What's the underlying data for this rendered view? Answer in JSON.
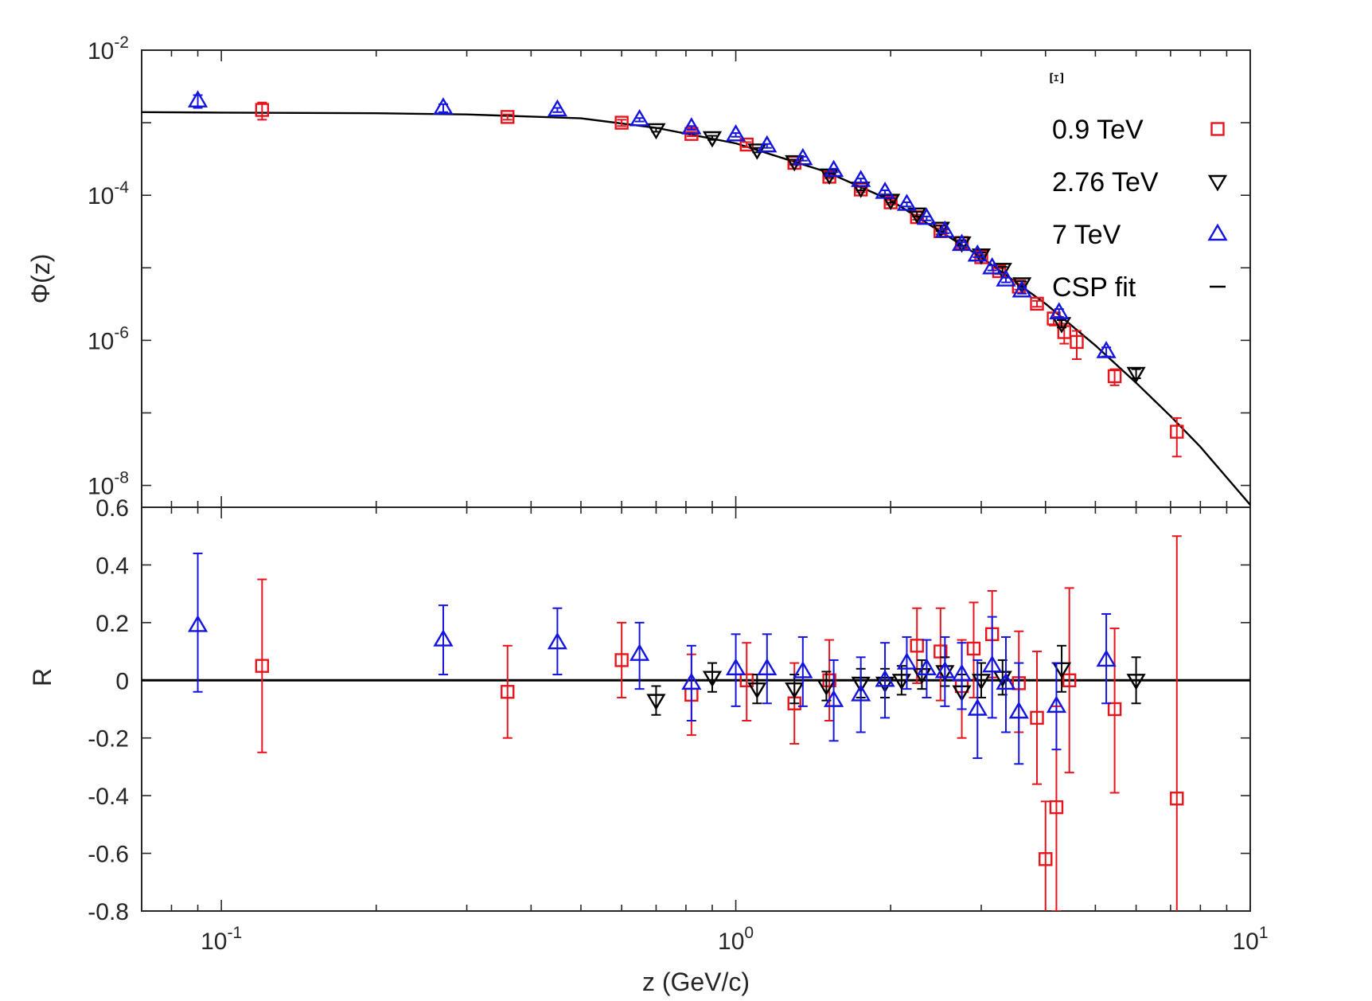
{
  "chart_data": [
    {
      "panel": "top",
      "type": "scatter",
      "scale": "log-log",
      "ylabel": "Φ(z)",
      "xlim": [
        0.07,
        10
      ],
      "ylim": [
        5e-09,
        0.01
      ],
      "species_label": "Ξ",
      "y_ticks": [
        {
          "value": 0.01,
          "base": "10",
          "exp": "-2"
        },
        {
          "value": 0.0001,
          "base": "10",
          "exp": "-4"
        },
        {
          "value": 1e-06,
          "base": "10",
          "exp": "-6"
        },
        {
          "value": 1e-08,
          "base": "10",
          "exp": "-8"
        }
      ],
      "legend": [
        {
          "name": "0.9 TeV",
          "marker": "square",
          "color": "#e8141c"
        },
        {
          "name": "2.76 TeV",
          "marker": "triangle-down",
          "color": "#000000"
        },
        {
          "name": "7 TeV",
          "marker": "triangle-up",
          "color": "#1414e0"
        },
        {
          "name": "CSP fit",
          "marker": "line",
          "color": "#000000"
        }
      ],
      "series": [
        {
          "name": "0.9 TeV",
          "x": [
            0.12,
            0.36,
            0.6,
            0.82,
            1.05,
            1.3,
            1.52,
            1.75,
            2.0,
            2.25,
            2.5,
            2.75,
            3.0,
            3.25,
            3.55,
            3.85,
            4.15,
            4.35,
            4.6,
            5.45,
            7.2
          ],
          "y": [
            0.0015,
            0.0012,
            0.001,
            0.0007,
            0.0005,
            0.00028,
            0.00018,
            0.00012,
            8e-05,
            5e-05,
            3.2e-05,
            2.2e-05,
            1.4e-05,
            9e-06,
            5.5e-06,
            3.2e-06,
            2e-06,
            1.3e-06,
            9.5e-07,
            3.2e-07,
            5.5e-08
          ],
          "yerr": [
            0.0004,
            0.0001,
            0.0001,
            5e-05,
            4e-05,
            2e-05,
            1e-05,
            1e-05,
            6e-06,
            4e-06,
            3e-06,
            2e-06,
            1.2e-06,
            8e-07,
            5e-07,
            3e-07,
            4e-07,
            4e-07,
            4e-07,
            8e-08,
            3e-08
          ]
        },
        {
          "name": "2.76 TeV",
          "x": [
            0.7,
            0.9,
            1.1,
            1.3,
            1.52,
            1.75,
            2.0,
            2.25,
            2.5,
            2.75,
            3.0,
            3.3,
            3.6,
            4.3,
            6.0
          ],
          "y": [
            0.0008,
            0.00062,
            0.00042,
            0.00029,
            0.00019,
            0.000125,
            8.5e-05,
            5.5e-05,
            3.5e-05,
            2.2e-05,
            1.5e-05,
            9.5e-06,
            6e-06,
            1.7e-06,
            3.5e-07
          ],
          "yerr": [
            5e-05,
            4e-05,
            3e-05,
            2e-05,
            1e-05,
            8e-06,
            6e-06,
            4e-06,
            3e-06,
            2e-06,
            1.2e-06,
            8e-07,
            5e-07,
            2e-07,
            5e-08
          ]
        },
        {
          "name": "7 TeV",
          "x": [
            0.09,
            0.27,
            0.45,
            0.65,
            0.82,
            1.0,
            1.15,
            1.35,
            1.55,
            1.75,
            1.95,
            2.15,
            2.35,
            2.55,
            2.75,
            2.95,
            3.15,
            3.35,
            3.6,
            4.25,
            5.25
          ],
          "y": [
            0.002,
            0.0016,
            0.0015,
            0.0011,
            0.00085,
            0.00068,
            0.00048,
            0.00032,
            0.00022,
            0.00016,
            0.00011,
            7.5e-05,
            4.8e-05,
            3.2e-05,
            2.1e-05,
            1.5e-05,
            1e-05,
            6.8e-06,
            4.8e-06,
            2.4e-06,
            7e-07
          ],
          "yerr": [
            0.0004,
            0.0002,
            0.0001,
            6e-05,
            5e-05,
            4e-05,
            3e-05,
            2e-05,
            1.2e-05,
            1e-05,
            7e-06,
            5e-06,
            3e-06,
            2e-06,
            1.5e-06,
            1e-06,
            8e-07,
            5e-07,
            4e-07,
            3e-07,
            1e-07
          ]
        }
      ],
      "fit": {
        "name": "CSP fit",
        "x": [
          0.07,
          0.1,
          0.2,
          0.3,
          0.5,
          0.7,
          1.0,
          1.5,
          2.0,
          3.0,
          4.0,
          5.0,
          6.0,
          7.0,
          8.0,
          10.0
        ],
        "y": [
          0.0014,
          0.00138,
          0.00135,
          0.0013,
          0.00115,
          0.00085,
          0.00052,
          0.00021,
          8.5e-05,
          1.4e-05,
          3.2e-06,
          8.5e-07,
          2.6e-07,
          9e-08,
          3.4e-08,
          5.4e-09
        ]
      }
    },
    {
      "panel": "bottom",
      "type": "scatter",
      "scale": "log-x",
      "xlabel": "z (GeV/c)",
      "ylabel": "R",
      "xlim": [
        0.07,
        10
      ],
      "ylim": [
        -0.8,
        0.6
      ],
      "x_ticks": [
        {
          "value": 0.1,
          "base": "10",
          "exp": "-1"
        },
        {
          "value": 1,
          "base": "10",
          "exp": "0"
        },
        {
          "value": 10,
          "base": "10",
          "exp": "1"
        }
      ],
      "y_ticks": [
        {
          "value": 0.6,
          "label": "0.6"
        },
        {
          "value": 0.4,
          "label": "0.4"
        },
        {
          "value": 0.2,
          "label": "0.2"
        },
        {
          "value": 0,
          "label": "0"
        },
        {
          "value": -0.2,
          "label": "-0.2"
        },
        {
          "value": -0.4,
          "label": "-0.4"
        },
        {
          "value": -0.6,
          "label": "-0.6"
        },
        {
          "value": -0.8,
          "label": "-0.8"
        }
      ],
      "reference_line": 0,
      "series": [
        {
          "name": "0.9 TeV",
          "x": [
            0.12,
            0.36,
            0.6,
            0.82,
            1.05,
            1.3,
            1.52,
            2.25,
            2.5,
            2.75,
            2.9,
            3.15,
            3.55,
            3.85,
            4.0,
            4.2,
            4.45,
            5.45,
            7.2
          ],
          "y": [
            0.05,
            -0.04,
            0.07,
            -0.05,
            0.0,
            -0.08,
            0.0,
            0.12,
            0.1,
            -0.02,
            0.11,
            0.16,
            -0.01,
            -0.13,
            -0.62,
            -0.44,
            0.0,
            -0.1,
            -0.41
          ],
          "err_lo": [
            0.3,
            0.16,
            0.13,
            0.14,
            0.14,
            0.14,
            0.14,
            0.13,
            0.17,
            0.18,
            0.17,
            0.15,
            0.17,
            0.23,
            0.2,
            0.36,
            0.32,
            0.29,
            0.4
          ],
          "err_hi": [
            0.3,
            0.16,
            0.13,
            0.14,
            0.13,
            0.14,
            0.14,
            0.13,
            0.15,
            0.16,
            0.16,
            0.15,
            0.18,
            0.23,
            0.2,
            0.35,
            0.32,
            0.28,
            0.91
          ]
        },
        {
          "name": "2.76 TeV",
          "x": [
            0.7,
            0.9,
            1.1,
            1.3,
            1.5,
            1.75,
            1.95,
            2.1,
            2.3,
            2.55,
            2.75,
            3.0,
            3.3,
            4.3,
            6.0
          ],
          "y": [
            -0.07,
            0.01,
            -0.03,
            -0.03,
            -0.02,
            -0.01,
            -0.01,
            0.0,
            0.02,
            0.03,
            -0.04,
            0.0,
            0.01,
            0.04,
            0.0
          ],
          "err_lo": [
            0.05,
            0.05,
            0.05,
            0.05,
            0.05,
            0.05,
            0.05,
            0.05,
            0.05,
            0.05,
            0.06,
            0.06,
            0.06,
            0.08,
            0.08
          ],
          "err_hi": [
            0.05,
            0.05,
            0.05,
            0.05,
            0.05,
            0.05,
            0.05,
            0.05,
            0.05,
            0.05,
            0.06,
            0.06,
            0.06,
            0.08,
            0.08
          ]
        },
        {
          "name": "7 TeV",
          "x": [
            0.09,
            0.27,
            0.45,
            0.65,
            0.82,
            1.0,
            1.15,
            1.35,
            1.55,
            1.75,
            1.95,
            2.15,
            2.35,
            2.55,
            2.75,
            2.95,
            3.15,
            3.35,
            3.55,
            4.2,
            5.25
          ],
          "y": [
            0.19,
            0.14,
            0.13,
            0.09,
            -0.01,
            0.04,
            0.04,
            0.03,
            -0.07,
            -0.05,
            0.0,
            0.06,
            0.04,
            0.03,
            0.02,
            -0.1,
            0.05,
            -0.01,
            -0.11,
            -0.09,
            0.07
          ],
          "err_lo": [
            0.23,
            0.12,
            0.11,
            0.12,
            0.13,
            0.13,
            0.12,
            0.12,
            0.14,
            0.13,
            0.13,
            0.09,
            0.1,
            0.12,
            0.12,
            0.17,
            0.18,
            0.17,
            0.18,
            0.15,
            0.15
          ],
          "err_hi": [
            0.25,
            0.12,
            0.12,
            0.11,
            0.13,
            0.12,
            0.12,
            0.12,
            0.14,
            0.13,
            0.13,
            0.09,
            0.1,
            0.12,
            0.11,
            0.17,
            0.17,
            0.16,
            0.17,
            0.15,
            0.16
          ]
        }
      ]
    }
  ]
}
